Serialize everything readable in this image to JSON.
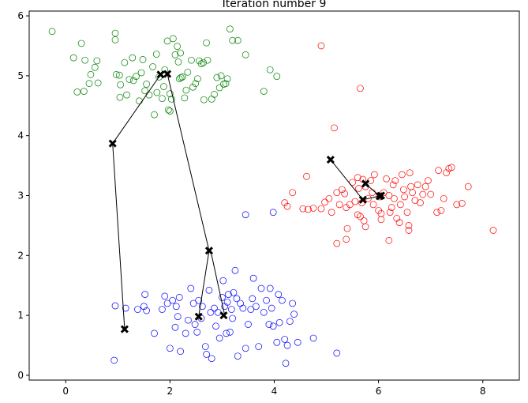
{
  "chart_data": {
    "type": "scatter",
    "title": "Iteration number 9",
    "xlabel": "",
    "ylabel": "",
    "xlim": [
      -0.7,
      8.7
    ],
    "ylim": [
      -0.08,
      6.08
    ],
    "grid": false,
    "x_ticks": [
      0,
      2,
      4,
      6,
      8
    ],
    "y_ticks": [
      0,
      1,
      2,
      3,
      4,
      5,
      6
    ],
    "x_tick_labels": [
      "0",
      "2",
      "4",
      "6",
      "8"
    ],
    "y_tick_labels": [
      "0",
      "1",
      "2",
      "3",
      "4",
      "5",
      "6"
    ],
    "series": [
      {
        "color": "#008000",
        "marker": "open-circle",
        "points": [
          [
            -0.26,
            5.74
          ],
          [
            0.15,
            5.3
          ],
          [
            0.3,
            5.54
          ],
          [
            0.37,
            5.26
          ],
          [
            0.45,
            4.87
          ],
          [
            0.56,
            5.14
          ],
          [
            0.48,
            5.02
          ],
          [
            0.62,
            4.88
          ],
          [
            0.22,
            4.73
          ],
          [
            0.35,
            4.74
          ],
          [
            0.6,
            5.25
          ],
          [
            0.95,
            5.71
          ],
          [
            0.95,
            5.6
          ],
          [
            0.97,
            5.02
          ],
          [
            1.03,
            5.01
          ],
          [
            1.04,
            4.64
          ],
          [
            1.05,
            4.85
          ],
          [
            1.13,
            5.22
          ],
          [
            1.17,
            4.68
          ],
          [
            1.22,
            4.94
          ],
          [
            1.28,
            5.3
          ],
          [
            1.35,
            4.99
          ],
          [
            1.41,
            4.58
          ],
          [
            1.48,
            5.27
          ],
          [
            1.52,
            4.75
          ],
          [
            1.55,
            4.86
          ],
          [
            1.6,
            4.68
          ],
          [
            1.67,
            5.15
          ],
          [
            1.7,
            4.35
          ],
          [
            1.74,
            5.36
          ],
          [
            1.79,
            4.98
          ],
          [
            1.85,
            4.62
          ],
          [
            1.88,
            4.82
          ],
          [
            1.95,
            5.58
          ],
          [
            1.97,
            4.43
          ],
          [
            2.0,
            4.41
          ],
          [
            2.03,
            4.61
          ],
          [
            2.06,
            5.62
          ],
          [
            2.1,
            5.35
          ],
          [
            2.14,
            5.49
          ],
          [
            2.16,
            5.23
          ],
          [
            2.18,
            4.95
          ],
          [
            2.21,
            4.97
          ],
          [
            2.24,
            4.98
          ],
          [
            2.28,
            4.63
          ],
          [
            2.31,
            4.76
          ],
          [
            2.34,
            5.06
          ],
          [
            2.41,
            5.26
          ],
          [
            2.44,
            4.81
          ],
          [
            2.49,
            4.87
          ],
          [
            2.53,
            4.95
          ],
          [
            2.56,
            5.25
          ],
          [
            2.6,
            5.2
          ],
          [
            2.64,
            5.22
          ],
          [
            2.7,
            5.55
          ],
          [
            2.72,
            5.26
          ],
          [
            2.8,
            4.61
          ],
          [
            2.85,
            4.69
          ],
          [
            2.9,
            4.97
          ],
          [
            2.98,
            5.0
          ],
          [
            3.03,
            4.86
          ],
          [
            3.07,
            4.87
          ],
          [
            3.1,
            4.95
          ],
          [
            3.15,
            5.78
          ],
          [
            3.2,
            5.59
          ],
          [
            3.3,
            5.59
          ],
          [
            3.45,
            5.35
          ],
          [
            3.8,
            4.74
          ],
          [
            3.92,
            5.1
          ],
          [
            4.05,
            4.99
          ],
          [
            1.3,
            4.92
          ],
          [
            2.0,
            4.7
          ],
          [
            1.75,
            4.72
          ],
          [
            2.65,
            4.6
          ],
          [
            1.9,
            5.1
          ],
          [
            2.2,
            5.38
          ],
          [
            1.45,
            5.05
          ],
          [
            2.95,
            4.8
          ]
        ]
      },
      {
        "color": "#ff0000",
        "marker": "open-circle",
        "points": [
          [
            4.9,
            5.5
          ],
          [
            5.65,
            4.79
          ],
          [
            5.15,
            4.13
          ],
          [
            4.62,
            3.32
          ],
          [
            4.35,
            3.05
          ],
          [
            4.2,
            2.88
          ],
          [
            4.25,
            2.82
          ],
          [
            4.55,
            2.78
          ],
          [
            4.65,
            2.77
          ],
          [
            4.75,
            2.79
          ],
          [
            4.9,
            2.78
          ],
          [
            4.97,
            2.89
          ],
          [
            5.05,
            2.95
          ],
          [
            5.1,
            2.72
          ],
          [
            5.2,
            3.05
          ],
          [
            5.25,
            2.85
          ],
          [
            5.3,
            3.1
          ],
          [
            5.35,
            3.03
          ],
          [
            5.38,
            2.8
          ],
          [
            5.4,
            2.45
          ],
          [
            5.45,
            2.85
          ],
          [
            5.5,
            3.22
          ],
          [
            5.55,
            2.9
          ],
          [
            5.6,
            3.3
          ],
          [
            5.62,
            3.12
          ],
          [
            5.65,
            2.65
          ],
          [
            5.68,
            2.88
          ],
          [
            5.7,
            3.27
          ],
          [
            5.72,
            2.58
          ],
          [
            5.75,
            3.15
          ],
          [
            5.8,
            2.95
          ],
          [
            5.85,
            3.25
          ],
          [
            5.88,
            3.05
          ],
          [
            5.9,
            2.85
          ],
          [
            5.92,
            3.35
          ],
          [
            6.0,
            2.75
          ],
          [
            6.02,
            2.98
          ],
          [
            6.05,
            2.7
          ],
          [
            6.1,
            3.05
          ],
          [
            6.15,
            3.28
          ],
          [
            6.2,
            3.0
          ],
          [
            6.22,
            2.72
          ],
          [
            6.25,
            2.8
          ],
          [
            6.28,
            3.18
          ],
          [
            6.3,
            2.95
          ],
          [
            6.32,
            3.25
          ],
          [
            6.35,
            2.62
          ],
          [
            6.4,
            2.55
          ],
          [
            6.42,
            2.85
          ],
          [
            6.45,
            3.35
          ],
          [
            6.48,
            3.1
          ],
          [
            6.5,
            2.98
          ],
          [
            6.55,
            2.72
          ],
          [
            6.58,
            2.5
          ],
          [
            6.6,
            3.38
          ],
          [
            6.62,
            3.15
          ],
          [
            6.65,
            3.05
          ],
          [
            6.7,
            2.92
          ],
          [
            6.75,
            3.18
          ],
          [
            6.8,
            2.88
          ],
          [
            6.85,
            3.02
          ],
          [
            6.9,
            3.15
          ],
          [
            6.95,
            3.25
          ],
          [
            7.0,
            3.02
          ],
          [
            7.15,
            3.42
          ],
          [
            7.2,
            2.75
          ],
          [
            7.25,
            2.95
          ],
          [
            7.3,
            3.38
          ],
          [
            7.35,
            3.45
          ],
          [
            7.4,
            3.47
          ],
          [
            7.5,
            2.85
          ],
          [
            7.6,
            2.87
          ],
          [
            7.72,
            3.15
          ],
          [
            8.2,
            2.42
          ],
          [
            5.2,
            2.2
          ],
          [
            5.38,
            2.27
          ],
          [
            5.6,
            2.68
          ],
          [
            5.75,
            2.48
          ],
          [
            6.2,
            2.25
          ],
          [
            6.58,
            2.42
          ],
          [
            7.12,
            2.72
          ],
          [
            6.05,
            2.6
          ]
        ]
      },
      {
        "color": "#0000ff",
        "marker": "open-circle",
        "points": [
          [
            3.45,
            2.68
          ],
          [
            3.98,
            2.72
          ],
          [
            0.95,
            1.16
          ],
          [
            0.93,
            0.25
          ],
          [
            1.38,
            1.1
          ],
          [
            1.5,
            1.15
          ],
          [
            1.52,
            1.35
          ],
          [
            1.55,
            1.08
          ],
          [
            1.7,
            0.7
          ],
          [
            1.85,
            1.1
          ],
          [
            1.9,
            1.32
          ],
          [
            1.95,
            1.2
          ],
          [
            2.0,
            0.45
          ],
          [
            2.05,
            1.25
          ],
          [
            2.1,
            0.8
          ],
          [
            2.12,
            1.15
          ],
          [
            2.15,
            0.98
          ],
          [
            2.18,
            1.3
          ],
          [
            2.2,
            0.4
          ],
          [
            2.3,
            0.7
          ],
          [
            2.4,
            1.45
          ],
          [
            2.45,
            1.2
          ],
          [
            2.48,
            0.85
          ],
          [
            2.52,
            0.72
          ],
          [
            2.55,
            1.25
          ],
          [
            2.6,
            0.95
          ],
          [
            2.62,
            1.15
          ],
          [
            2.68,
            0.48
          ],
          [
            2.7,
            0.35
          ],
          [
            2.75,
            1.42
          ],
          [
            2.78,
            1.05
          ],
          [
            2.8,
            0.28
          ],
          [
            2.85,
            1.12
          ],
          [
            2.88,
            0.82
          ],
          [
            2.92,
            1.05
          ],
          [
            2.95,
            0.62
          ],
          [
            3.0,
            1.3
          ],
          [
            3.02,
            1.58
          ],
          [
            3.05,
            1.15
          ],
          [
            3.08,
            0.7
          ],
          [
            3.1,
            1.22
          ],
          [
            3.12,
            1.35
          ],
          [
            3.15,
            0.72
          ],
          [
            3.18,
            1.1
          ],
          [
            3.2,
            0.95
          ],
          [
            3.22,
            1.38
          ],
          [
            3.25,
            1.75
          ],
          [
            3.28,
            1.28
          ],
          [
            3.3,
            0.32
          ],
          [
            3.35,
            1.2
          ],
          [
            3.4,
            1.12
          ],
          [
            3.45,
            0.45
          ],
          [
            3.5,
            0.85
          ],
          [
            3.55,
            1.1
          ],
          [
            3.58,
            1.28
          ],
          [
            3.6,
            1.62
          ],
          [
            3.65,
            1.15
          ],
          [
            3.7,
            0.48
          ],
          [
            3.75,
            1.45
          ],
          [
            3.8,
            1.05
          ],
          [
            3.85,
            1.25
          ],
          [
            3.9,
            0.85
          ],
          [
            3.92,
            1.45
          ],
          [
            3.95,
            1.12
          ],
          [
            3.98,
            0.82
          ],
          [
            4.05,
            0.55
          ],
          [
            4.08,
            1.35
          ],
          [
            4.1,
            0.88
          ],
          [
            4.15,
            1.25
          ],
          [
            4.2,
            0.6
          ],
          [
            4.22,
            0.2
          ],
          [
            4.25,
            0.5
          ],
          [
            4.3,
            0.9
          ],
          [
            4.35,
            1.2
          ],
          [
            4.38,
            1.02
          ],
          [
            4.45,
            0.55
          ],
          [
            4.75,
            0.62
          ],
          [
            5.2,
            0.37
          ],
          [
            1.15,
            1.12
          ],
          [
            2.35,
            0.92
          ]
        ]
      }
    ],
    "centroid_paths": [
      [
        [
          1.82,
          5.02
        ],
        [
          0.9,
          3.87
        ],
        [
          1.13,
          0.77
        ]
      ],
      [
        [
          1.95,
          5.03
        ],
        [
          2.75,
          2.08
        ],
        [
          2.55,
          0.98
        ]
      ],
      [
        [
          5.08,
          3.6
        ],
        [
          5.7,
          2.93
        ],
        [
          6.05,
          3.0
        ]
      ],
      [
        [
          5.75,
          3.2
        ],
        [
          6.02,
          2.99
        ]
      ],
      [
        [
          2.78,
          2.08
        ],
        [
          3.05,
          1.0
        ]
      ]
    ],
    "centroids": [
      [
        1.82,
        5.02
      ],
      [
        1.95,
        5.03
      ],
      [
        0.9,
        3.87
      ],
      [
        1.13,
        0.77
      ],
      [
        2.75,
        2.08
      ],
      [
        2.55,
        0.98
      ],
      [
        5.08,
        3.6
      ],
      [
        5.75,
        3.2
      ],
      [
        5.7,
        2.93
      ],
      [
        6.02,
        2.99
      ],
      [
        6.05,
        3.0
      ],
      [
        3.03,
        1.0
      ]
    ],
    "centroid_marker": "x",
    "centroid_color": "#000000",
    "path_color": "#000000"
  }
}
